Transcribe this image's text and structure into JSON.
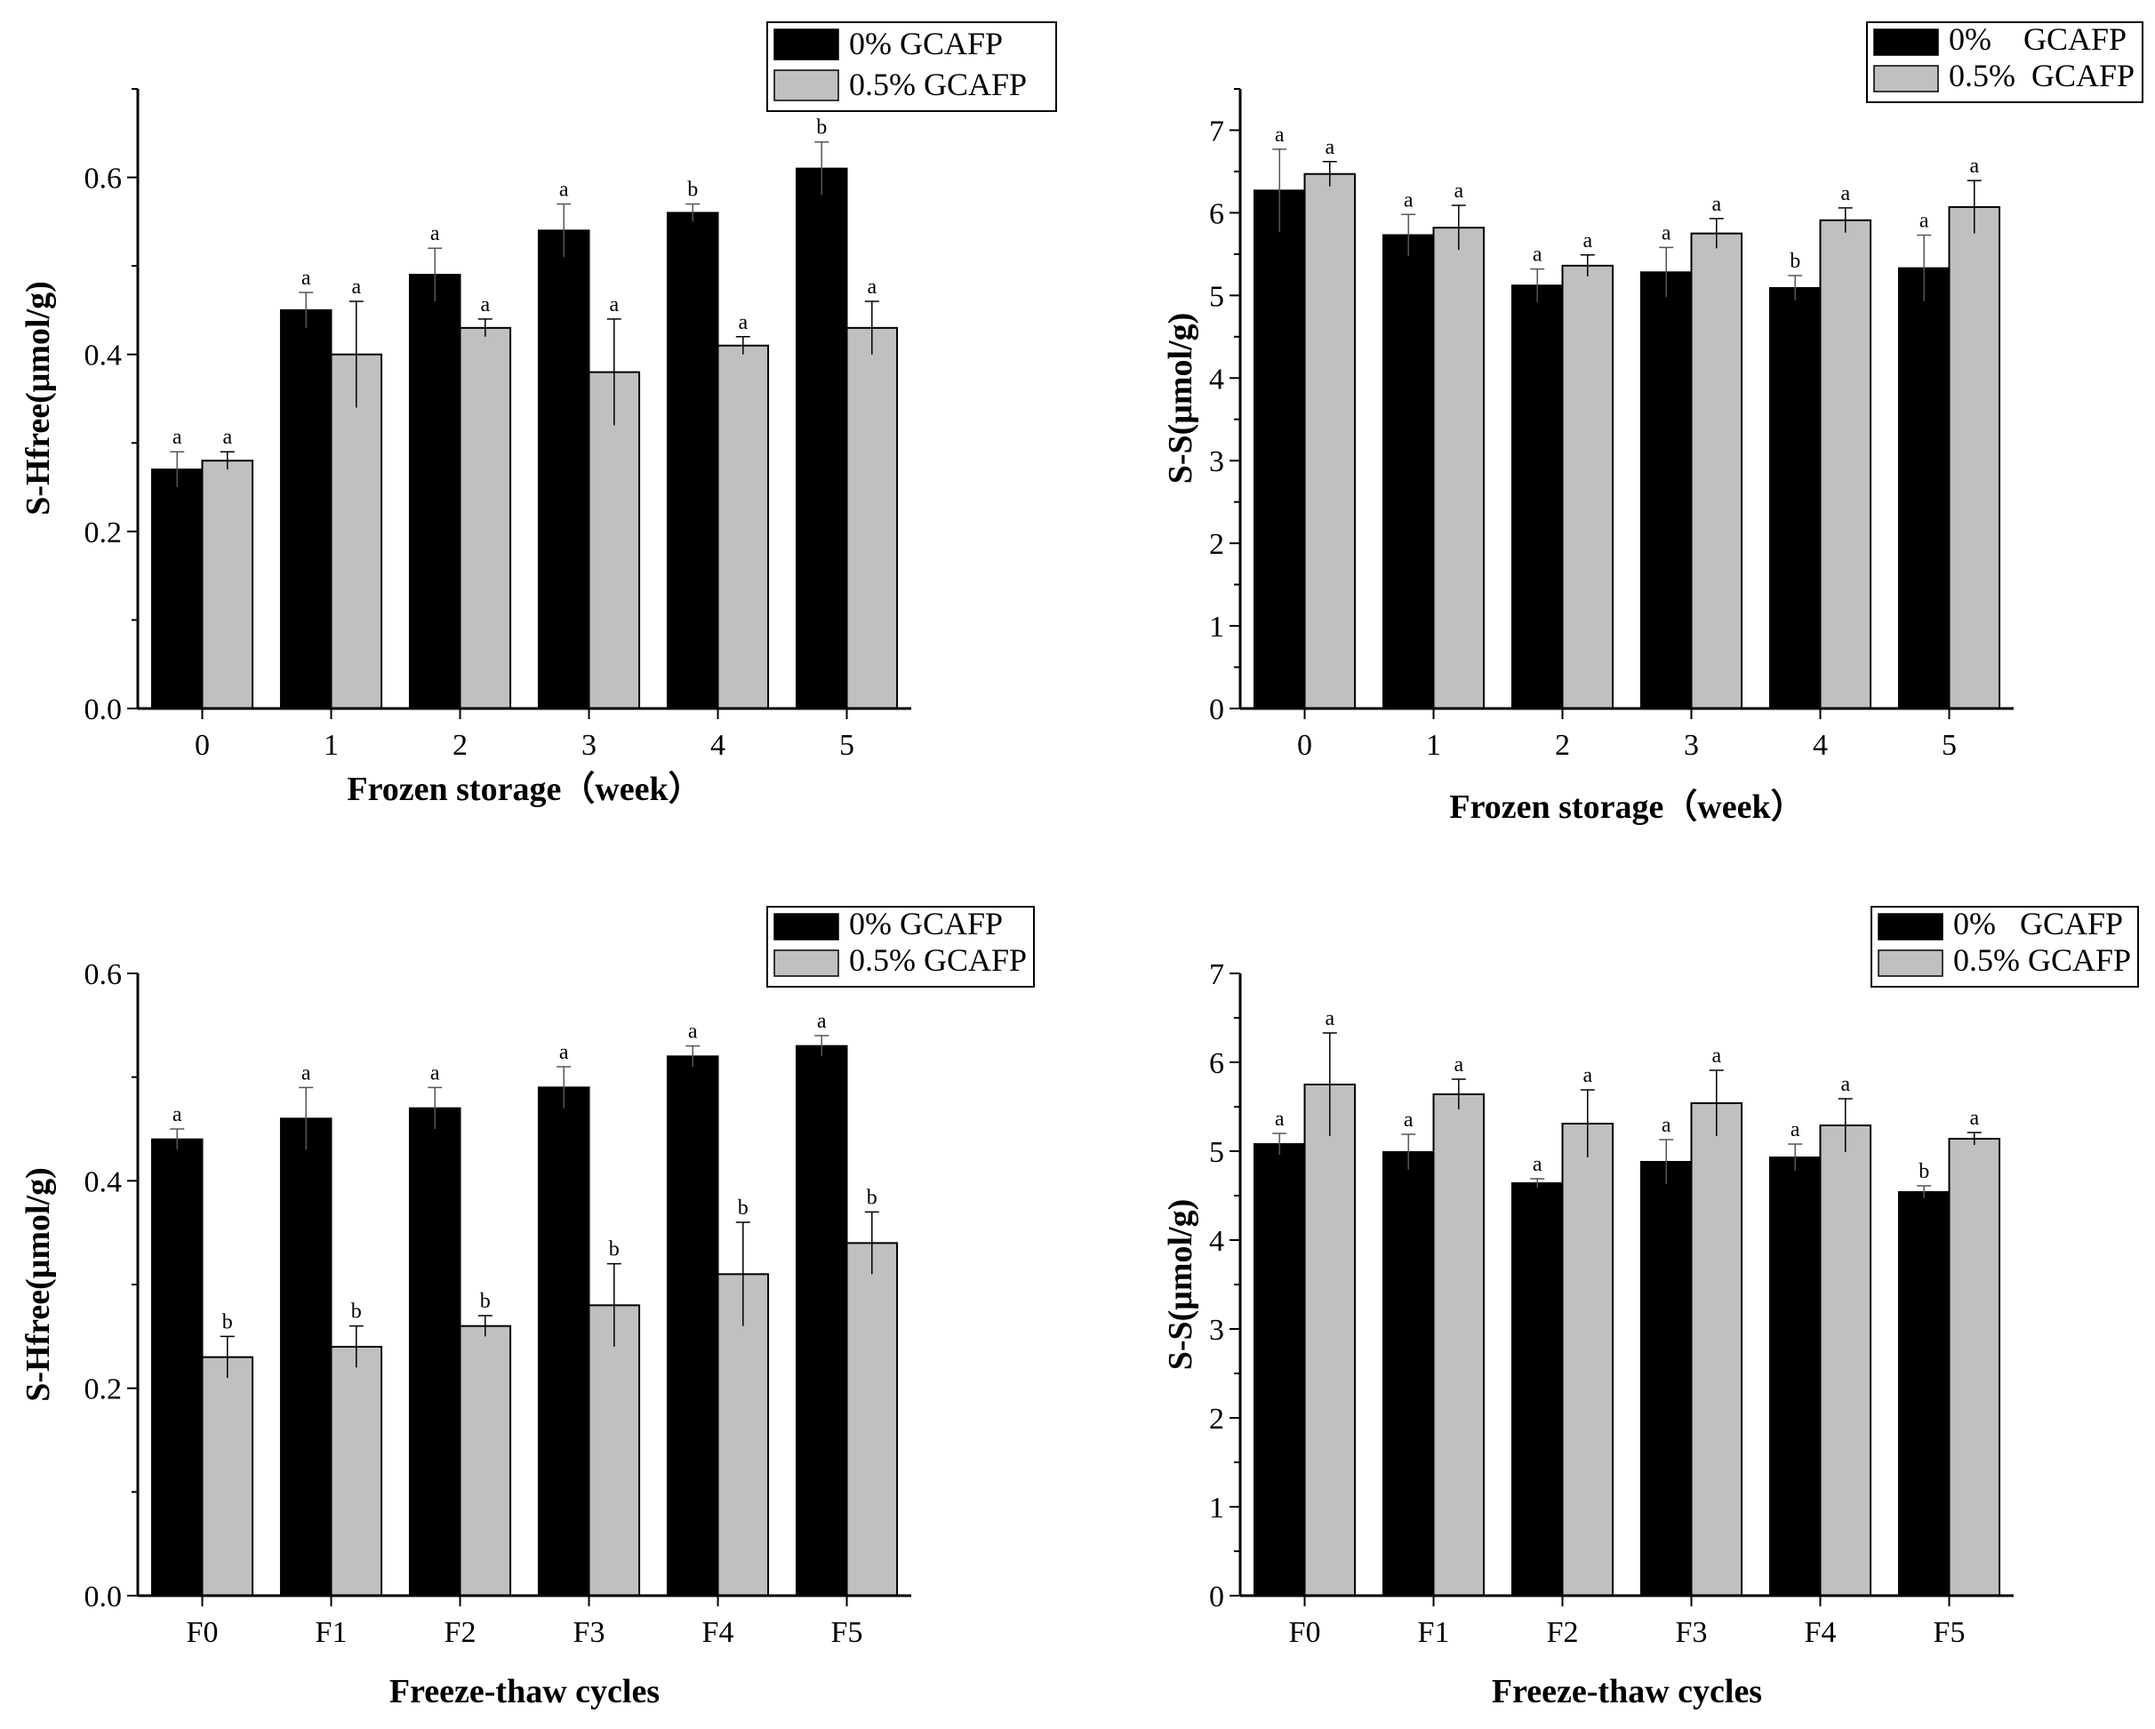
{
  "chart_data": [
    {
      "type": "bar",
      "title": "",
      "xlabel": "Frozen storage（week）",
      "ylabel": "S-Hfree(μmol/g)",
      "categories": [
        "0",
        "1",
        "2",
        "3",
        "4",
        "5"
      ],
      "ylim": [
        0,
        0.7
      ],
      "yticks": [
        "0.0",
        "0.2",
        "0.4",
        "0.6"
      ],
      "legend_position": "top-right",
      "series": [
        {
          "name": "0% GCAFP",
          "color": "#000000",
          "values": [
            0.27,
            0.45,
            0.49,
            0.54,
            0.56,
            0.61
          ],
          "errors": [
            0.02,
            0.02,
            0.03,
            0.03,
            0.01,
            0.03
          ],
          "labels": [
            "a",
            "a",
            "a",
            "a",
            "b",
            "b"
          ]
        },
        {
          "name": "0.5% GCAFP",
          "color": "#c0c0c0",
          "values": [
            0.28,
            0.4,
            0.43,
            0.38,
            0.41,
            0.43
          ],
          "errors": [
            0.01,
            0.06,
            0.01,
            0.06,
            0.01,
            0.03
          ],
          "labels": [
            "a",
            "a",
            "a",
            "a",
            "a",
            "a"
          ]
        }
      ]
    },
    {
      "type": "bar",
      "title": "",
      "xlabel": "Frozen storage（week）",
      "ylabel": "S-S(μmol/g)",
      "categories": [
        "0",
        "1",
        "2",
        "3",
        "4",
        "5"
      ],
      "ylim": [
        0,
        7.5
      ],
      "yticks": [
        "0",
        "1",
        "2",
        "3",
        "4",
        "5",
        "6",
        "7"
      ],
      "legend_position": "top-right",
      "series": [
        {
          "name": "0%    GCAFP",
          "color": "#000000",
          "values": [
            6.27,
            5.73,
            5.12,
            5.28,
            5.09,
            5.33
          ],
          "errors": [
            0.5,
            0.25,
            0.2,
            0.3,
            0.15,
            0.4
          ],
          "labels": [
            "a",
            "a",
            "a",
            "a",
            "b",
            "a"
          ]
        },
        {
          "name": "0.5%  GCAFP",
          "color": "#c0c0c0",
          "values": [
            6.47,
            5.82,
            5.36,
            5.75,
            5.91,
            6.07
          ],
          "errors": [
            0.15,
            0.27,
            0.13,
            0.18,
            0.15,
            0.32
          ],
          "labels": [
            "a",
            "a",
            "a",
            "a",
            "a",
            "a"
          ]
        }
      ]
    },
    {
      "type": "bar",
      "title": "",
      "xlabel": "Freeze-thaw cycles",
      "ylabel": "S-Hfree(μmol/g)",
      "categories": [
        "F0",
        "F1",
        "F2",
        "F3",
        "F4",
        "F5"
      ],
      "ylim": [
        0,
        0.6
      ],
      "yticks": [
        "0.0",
        "0.2",
        "0.4",
        "0.6"
      ],
      "legend_position": "top-right",
      "series": [
        {
          "name": "0% GCAFP",
          "color": "#000000",
          "values": [
            0.44,
            0.46,
            0.47,
            0.49,
            0.52,
            0.53
          ],
          "errors": [
            0.01,
            0.03,
            0.02,
            0.02,
            0.01,
            0.01
          ],
          "labels": [
            "a",
            "a",
            "a",
            "a",
            "a",
            "a"
          ]
        },
        {
          "name": "0.5% GCAFP",
          "color": "#c0c0c0",
          "values": [
            0.23,
            0.24,
            0.26,
            0.28,
            0.31,
            0.34
          ],
          "errors": [
            0.02,
            0.02,
            0.01,
            0.04,
            0.05,
            0.03
          ],
          "labels": [
            "b",
            "b",
            "b",
            "b",
            "b",
            "b"
          ]
        }
      ]
    },
    {
      "type": "bar",
      "title": "",
      "xlabel": "Freeze-thaw cycles",
      "ylabel": "S-S(μmol/g)",
      "categories": [
        "F0",
        "F1",
        "F2",
        "F3",
        "F4",
        "F5"
      ],
      "ylim": [
        0,
        7
      ],
      "yticks": [
        "0",
        "1",
        "2",
        "3",
        "4",
        "5",
        "6",
        "7"
      ],
      "legend_position": "top-right",
      "series": [
        {
          "name": "0%   GCAFP",
          "color": "#000000",
          "values": [
            5.08,
            4.99,
            4.64,
            4.88,
            4.93,
            4.54
          ],
          "errors": [
            0.12,
            0.2,
            0.05,
            0.25,
            0.15,
            0.07
          ],
          "labels": [
            "a",
            "a",
            "a",
            "a",
            "a",
            "b"
          ]
        },
        {
          "name": "0.5% GCAFP",
          "color": "#c0c0c0",
          "values": [
            5.75,
            5.64,
            5.31,
            5.54,
            5.29,
            5.14
          ],
          "errors": [
            0.58,
            0.17,
            0.38,
            0.37,
            0.3,
            0.07
          ],
          "labels": [
            "a",
            "a",
            "a",
            "a",
            "a",
            "a"
          ]
        }
      ]
    }
  ]
}
